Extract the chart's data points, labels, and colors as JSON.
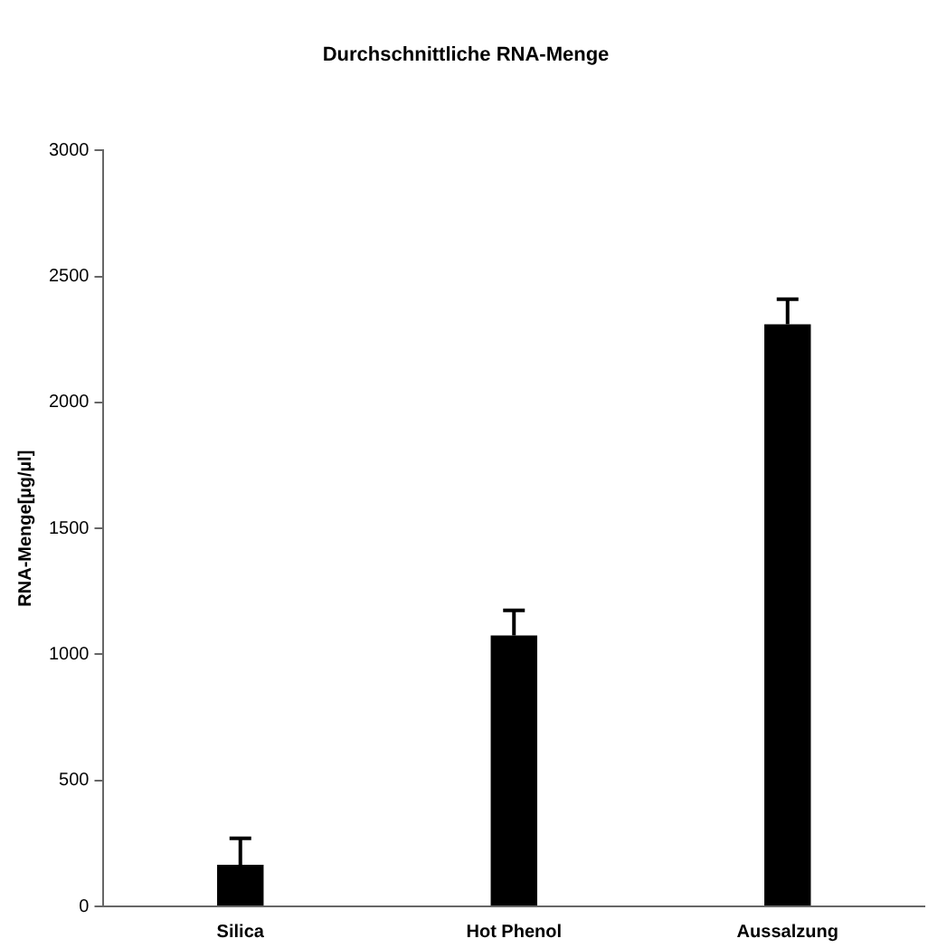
{
  "chart_data": {
    "type": "bar",
    "title": "Durchschnittliche RNA-Menge",
    "ylabel": "RNA-Menge[µg/µl]",
    "categories": [
      "Silica",
      "Hot Phenol",
      "Aussalzung"
    ],
    "values": [
      165,
      1075,
      2310
    ],
    "errors": [
      [
        165,
        270
      ],
      [
        1075,
        1175
      ],
      [
        2310,
        2410
      ]
    ],
    "color": "#000000",
    "ylim": [
      0,
      3000
    ],
    "yticks": [
      0,
      500,
      1000,
      1500,
      2000,
      2500,
      3000
    ],
    "grid": false,
    "legend": false
  }
}
